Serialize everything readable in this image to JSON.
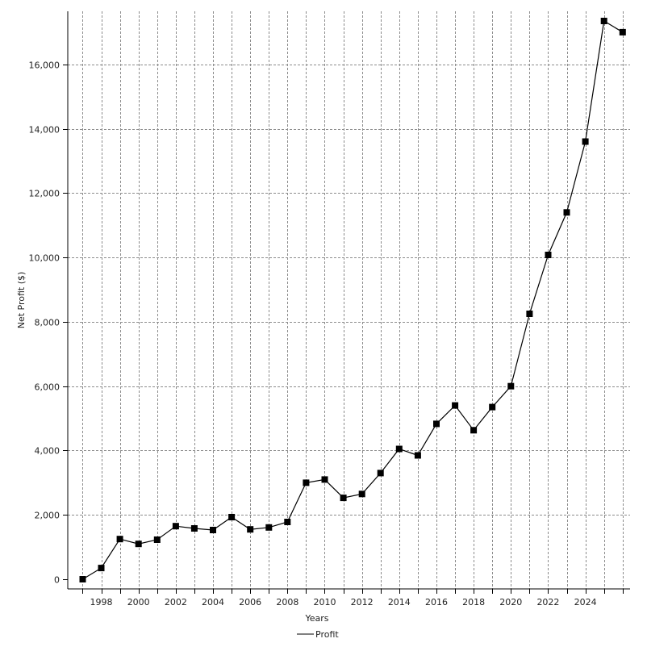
{
  "chart_data": {
    "type": "line",
    "title": "",
    "xlabel": "Years",
    "ylabel": "Net Profit ($)",
    "x": [
      1997,
      1998,
      1999,
      2000,
      2001,
      2002,
      2003,
      2004,
      2005,
      2006,
      2007,
      2008,
      2009,
      2010,
      2011,
      2012,
      2013,
      2014,
      2015,
      2016,
      2017,
      2018,
      2019,
      2020,
      2021,
      2022,
      2023,
      2024,
      2025,
      2026
    ],
    "series": [
      {
        "name": "Profit",
        "color": "#000000",
        "marker": "square",
        "values": [
          0,
          350,
          1250,
          1100,
          1230,
          1650,
          1580,
          1530,
          1930,
          1550,
          1610,
          1780,
          3000,
          3100,
          2530,
          2650,
          3300,
          4050,
          3850,
          4830,
          5400,
          4630,
          5350,
          6000,
          8250,
          10080,
          11400,
          13600,
          17350,
          17000
        ]
      }
    ],
    "xlim": [
      1996.2,
      2026.4
    ],
    "ylim": [
      -300,
      17650
    ],
    "xticks": [
      "1998",
      "2000",
      "2002",
      "2004",
      "2006",
      "2008",
      "2010",
      "2012",
      "2014",
      "2016",
      "2018",
      "2020",
      "2022",
      "2024"
    ],
    "yticks": [
      "0",
      "2,000",
      "4,000",
      "6,000",
      "8,000",
      "10,000",
      "12,000",
      "14,000",
      "16,000"
    ],
    "grid": true,
    "grid_style": "dashed",
    "legend_position": "bottom-center"
  }
}
